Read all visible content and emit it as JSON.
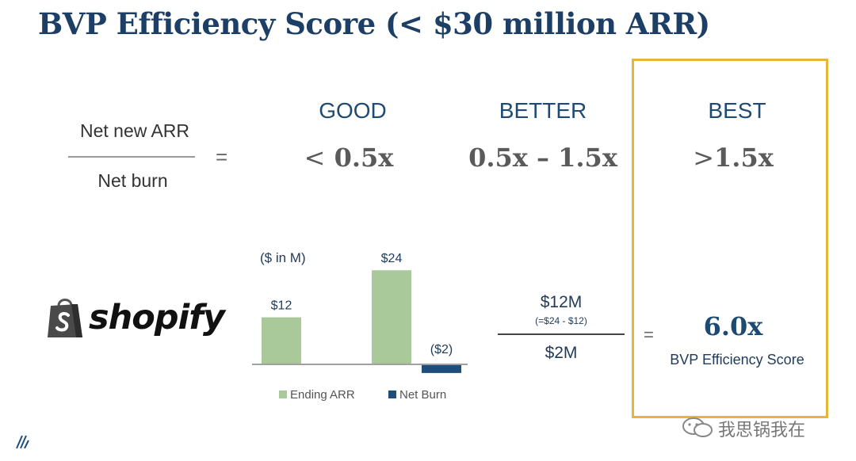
{
  "title": "BVP Efficiency Score (< $30 million ARR)",
  "formula": {
    "numerator": "Net new ARR",
    "denominator": "Net burn",
    "equals": "="
  },
  "tiers": [
    {
      "label": "GOOD",
      "op": "<",
      "value": "0.5x"
    },
    {
      "label": "BETTER",
      "op": "",
      "value": "0.5x – 1.5x"
    },
    {
      "label": "BEST",
      "op": ">",
      "value": "1.5x"
    }
  ],
  "logo": {
    "text": "shopify",
    "icon": "shopify-bag-icon"
  },
  "chart_data": {
    "type": "bar",
    "unit_label": "($ in M)",
    "series": [
      {
        "name": "Ending ARR",
        "color": "#a9c99a",
        "values": [
          12,
          24
        ]
      },
      {
        "name": "Net Burn",
        "color": "#1d4e7c",
        "values": [
          -2
        ]
      }
    ],
    "bars": [
      {
        "series": "Ending ARR",
        "value": 12,
        "label": "$12"
      },
      {
        "series": "Ending ARR",
        "value": 24,
        "label": "$24"
      },
      {
        "series": "Net Burn",
        "value": -2,
        "label": "($2)"
      }
    ]
  },
  "calculation": {
    "numerator": "$12M",
    "numerator_note": "(=$24 - $12)",
    "denominator": "$2M",
    "equals": "="
  },
  "result": {
    "score": "6.0x",
    "caption": "BVP Efficiency Score"
  },
  "watermark": "我思锅我在",
  "colors": {
    "accent": "#e6b63a",
    "title": "#1d3f66"
  }
}
